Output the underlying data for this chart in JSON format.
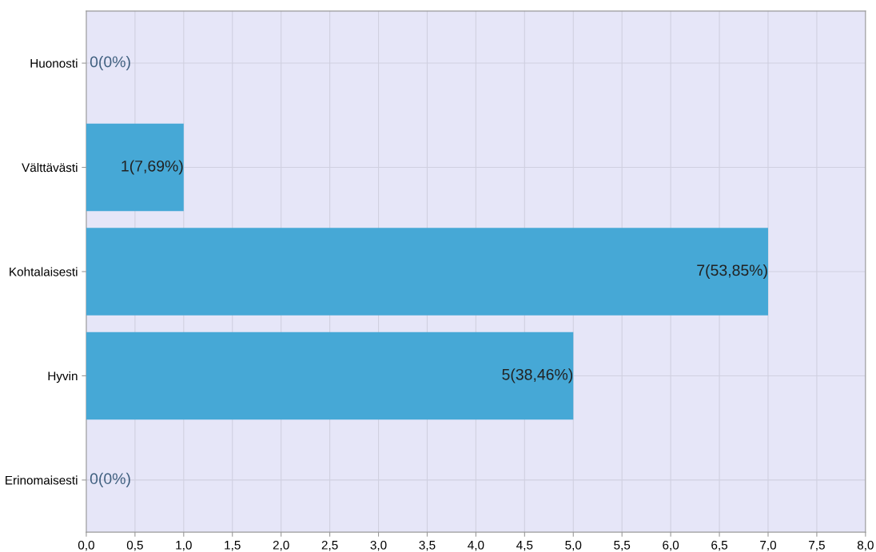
{
  "chart_data": {
    "type": "bar",
    "orientation": "horizontal",
    "categories": [
      "Huonosti",
      "Välttävästi",
      "Kohtalaisesti",
      "Hyvin",
      "Erinomaisesti"
    ],
    "values": [
      0,
      1,
      7,
      5,
      0
    ],
    "value_labels": [
      "0(0%)",
      "1(7,69%)",
      "7(53,85%)",
      "5(38,46%)",
      "0(0%)"
    ],
    "color": "#46a8d6",
    "xlim": [
      0,
      8
    ],
    "xticks": [
      {
        "value": 0,
        "label": "0,0"
      },
      {
        "value": 0.5,
        "label": "0,5"
      },
      {
        "value": 1,
        "label": "1,0"
      },
      {
        "value": 1.5,
        "label": "1,5"
      },
      {
        "value": 2,
        "label": "2,0"
      },
      {
        "value": 2.5,
        "label": "2,5"
      },
      {
        "value": 3,
        "label": "3,0"
      },
      {
        "value": 3.5,
        "label": "3,5"
      },
      {
        "value": 4,
        "label": "4,0"
      },
      {
        "value": 4.5,
        "label": "4,5"
      },
      {
        "value": 5,
        "label": "5,0"
      },
      {
        "value": 5.5,
        "label": "5,5"
      },
      {
        "value": 6,
        "label": "6,0"
      },
      {
        "value": 6.5,
        "label": "6,5"
      },
      {
        "value": 7,
        "label": "7,0"
      },
      {
        "value": 7.5,
        "label": "7,5"
      },
      {
        "value": 8,
        "label": "8,0"
      }
    ],
    "grid": true
  }
}
